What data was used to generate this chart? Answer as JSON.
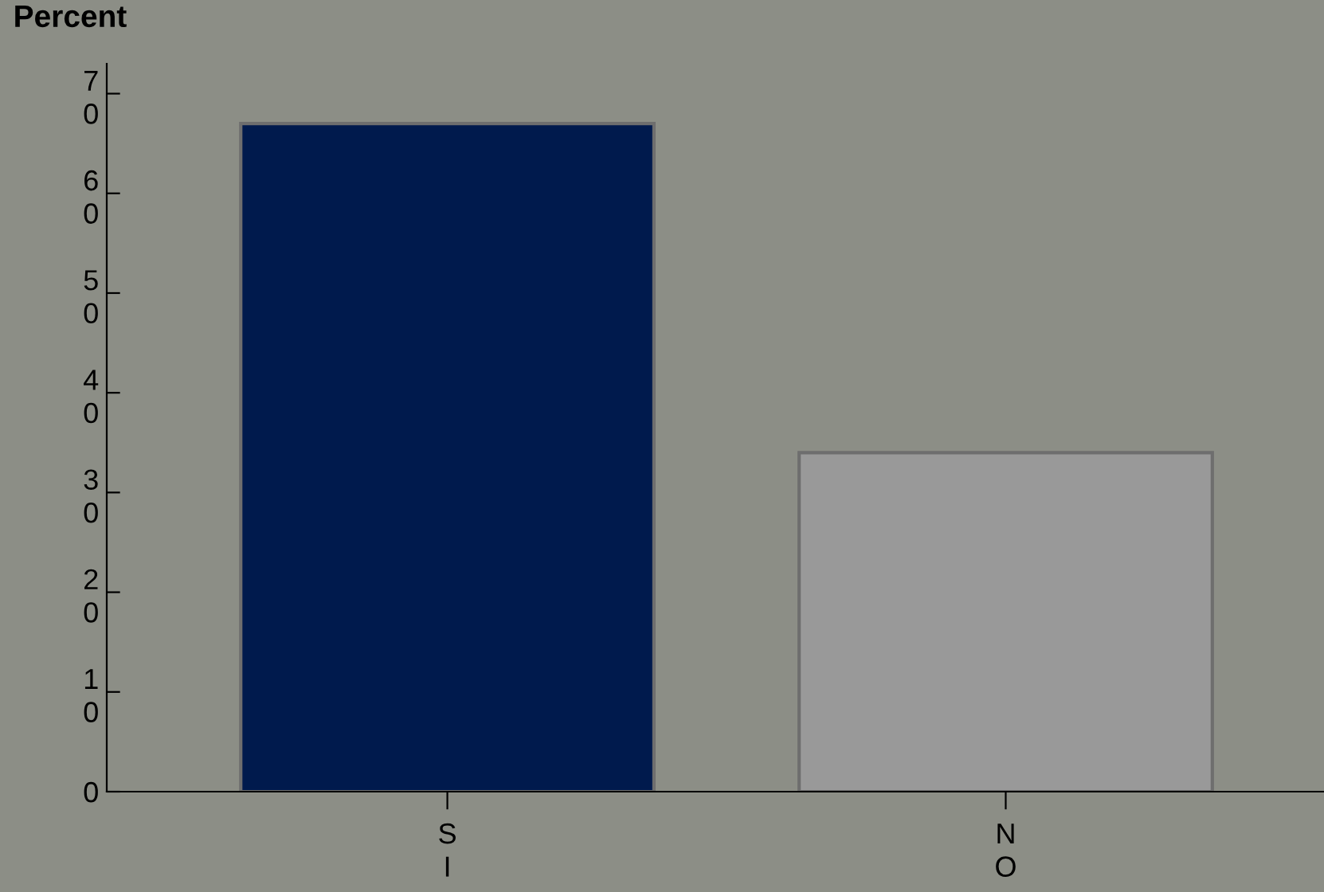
{
  "chart_data": {
    "type": "bar",
    "ylabel": "Percent",
    "categories": [
      "SI",
      "NO"
    ],
    "values": [
      67,
      34
    ],
    "colors": [
      "#001a4d",
      "#999999"
    ],
    "ylim": [
      0,
      73
    ],
    "yticks": [
      0,
      {
        "value": 10,
        "label": "10"
      },
      {
        "value": 20,
        "label": "20"
      },
      {
        "value": 30,
        "label": "30"
      },
      {
        "value": 40,
        "label": "40"
      },
      {
        "value": 50,
        "label": "50"
      },
      {
        "value": 60,
        "label": "60"
      },
      {
        "value": 70,
        "label": "70"
      }
    ],
    "grid": false,
    "legend": false
  }
}
